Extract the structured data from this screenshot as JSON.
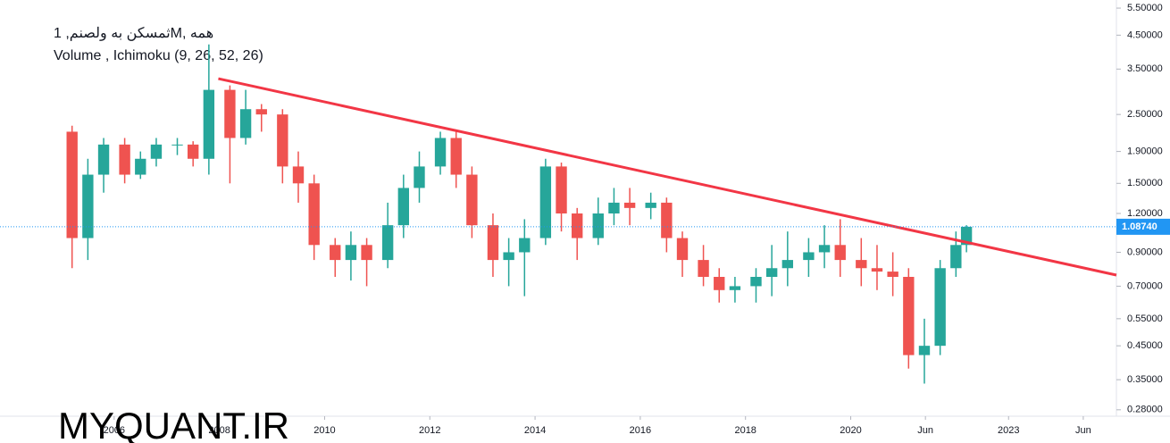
{
  "chart_data": {
    "type": "candlestick",
    "title": "ثمسکن به ولصنم, 1M, همه",
    "subtitle": "Volume , Ichimoku (9, 26, 52, 26)",
    "watermark": "MYQUANT.IR",
    "log_scale": true,
    "up_color": "#26a69a",
    "down_color": "#ef5350",
    "x": [
      2005.2,
      2005.5,
      2005.8,
      2006.2,
      2006.5,
      2006.8,
      2007.2,
      2007.5,
      2007.8,
      2008.2,
      2008.5,
      2008.8,
      2009.2,
      2009.5,
      2009.8,
      2010.2,
      2010.5,
      2010.8,
      2011.2,
      2011.5,
      2011.8,
      2012.2,
      2012.5,
      2012.8,
      2013.2,
      2013.5,
      2013.8,
      2014.2,
      2014.5,
      2014.8,
      2015.2,
      2015.5,
      2015.8,
      2016.2,
      2016.5,
      2016.8,
      2017.2,
      2017.5,
      2017.8,
      2018.2,
      2018.5,
      2018.8,
      2019.2,
      2019.5,
      2019.8,
      2020.2,
      2020.5,
      2020.8,
      2021.1,
      2021.4,
      2021.7,
      2022.0,
      2022.2
    ],
    "open": [
      2.2,
      1.0,
      1.6,
      2.0,
      1.6,
      1.8,
      2.0,
      2.0,
      1.8,
      3.0,
      2.1,
      2.6,
      2.5,
      1.7,
      1.5,
      0.95,
      0.85,
      0.95,
      0.85,
      1.1,
      1.45,
      1.7,
      2.1,
      1.6,
      1.1,
      0.85,
      0.9,
      1.0,
      1.7,
      1.2,
      1.0,
      1.2,
      1.3,
      1.25,
      1.3,
      1.0,
      0.85,
      0.75,
      0.68,
      0.7,
      0.75,
      0.8,
      0.85,
      0.9,
      0.95,
      0.85,
      0.8,
      0.78,
      0.75,
      0.42,
      0.45,
      0.8,
      0.95
    ],
    "high": [
      2.3,
      1.8,
      2.1,
      2.1,
      1.9,
      2.1,
      2.1,
      2.05,
      4.2,
      3.1,
      3.0,
      2.7,
      2.6,
      1.9,
      1.6,
      1.0,
      1.05,
      1.0,
      1.3,
      1.6,
      1.9,
      2.2,
      2.2,
      1.7,
      1.2,
      1.0,
      1.15,
      1.8,
      1.75,
      1.25,
      1.35,
      1.45,
      1.45,
      1.4,
      1.35,
      1.05,
      0.95,
      0.8,
      0.75,
      0.8,
      0.95,
      1.05,
      1.0,
      1.1,
      1.15,
      1.0,
      0.95,
      0.9,
      0.8,
      0.55,
      0.85,
      1.05,
      1.1
    ],
    "low": [
      0.8,
      0.85,
      1.4,
      1.5,
      1.55,
      1.7,
      1.85,
      1.7,
      1.6,
      1.5,
      2.0,
      2.2,
      1.5,
      1.3,
      0.85,
      0.75,
      0.73,
      0.7,
      0.8,
      1.0,
      1.3,
      1.6,
      1.45,
      1.0,
      0.75,
      0.7,
      0.65,
      0.95,
      1.05,
      0.85,
      0.95,
      1.1,
      1.1,
      1.15,
      0.9,
      0.75,
      0.7,
      0.62,
      0.62,
      0.62,
      0.65,
      0.7,
      0.75,
      0.8,
      0.75,
      0.7,
      0.68,
      0.65,
      0.38,
      0.34,
      0.42,
      0.75,
      0.9
    ],
    "close": [
      1.0,
      1.6,
      2.0,
      1.6,
      1.8,
      2.0,
      2.0,
      1.8,
      3.0,
      2.1,
      2.6,
      2.5,
      1.7,
      1.5,
      0.95,
      0.85,
      0.95,
      0.85,
      1.1,
      1.45,
      1.7,
      2.1,
      1.6,
      1.1,
      0.85,
      0.9,
      1.0,
      1.7,
      1.2,
      1.0,
      1.2,
      1.3,
      1.25,
      1.3,
      1.0,
      0.85,
      0.75,
      0.68,
      0.7,
      0.75,
      0.8,
      0.85,
      0.9,
      0.95,
      0.85,
      0.8,
      0.78,
      0.75,
      0.42,
      0.45,
      0.8,
      0.95,
      1.0874
    ],
    "trendline": {
      "x": [
        2007.98,
        2025.05
      ],
      "values": [
        3.26,
        0.76
      ],
      "color": "#f23645"
    },
    "last": {
      "value": 1.0874,
      "label": "1.08740"
    },
    "last_color": "#2196f3",
    "xlim": [
      2003.83,
      2025.05
    ],
    "ylim": [
      0.267,
      5.84
    ],
    "xticks": [
      2006,
      2008,
      2010,
      2012,
      2014,
      2016,
      2018,
      2020,
      {
        "value": 2021.42,
        "label": "Jun"
      },
      2023,
      {
        "value": 2024.42,
        "label": "Jun"
      }
    ],
    "yticks": [
      {
        "value": 5.5,
        "label": "5.50000"
      },
      {
        "value": 4.5,
        "label": "4.50000"
      },
      {
        "value": 3.5,
        "label": "3.50000"
      },
      {
        "value": 2.5,
        "label": "2.50000"
      },
      {
        "value": 1.9,
        "label": "1.90000"
      },
      {
        "value": 1.5,
        "label": "1.50000"
      },
      {
        "value": 1.2,
        "label": "1.20000"
      },
      {
        "value": 0.9,
        "label": "0.90000"
      },
      {
        "value": 0.7,
        "label": "0.70000"
      },
      {
        "value": 0.55,
        "label": "0.55000"
      },
      {
        "value": 0.45,
        "label": "0.45000"
      },
      {
        "value": 0.35,
        "label": "0.35000"
      },
      {
        "value": 0.28,
        "label": "0.28000"
      }
    ]
  }
}
